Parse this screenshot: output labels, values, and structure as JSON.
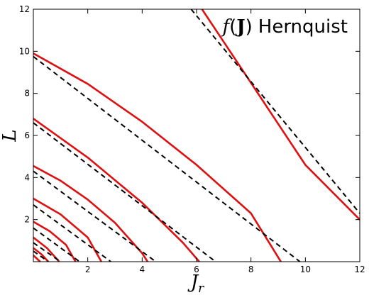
{
  "chart_data": {
    "type": "line",
    "annotation": {
      "f": "f",
      "open": "(",
      "J": "J",
      "close": ")",
      "name": "Hernquist"
    },
    "xlabel": {
      "main": "J",
      "sub": "r"
    },
    "ylabel": "L",
    "xlim": [
      0,
      12
    ],
    "ylim": [
      0,
      12
    ],
    "xticks": [
      2,
      4,
      6,
      8,
      10,
      12
    ],
    "yticks": [
      2,
      4,
      6,
      8,
      10,
      12
    ],
    "grid": false,
    "series_style": {
      "solid_color": "#dd1111",
      "dashed_color": "#000000"
    },
    "series": [
      {
        "style": "solid",
        "points": [
          [
            6.2,
            12
          ],
          [
            8,
            8.5
          ],
          [
            10,
            4.6
          ],
          [
            12,
            2.0
          ]
        ]
      },
      {
        "style": "solid",
        "points": [
          [
            0,
            9.9
          ],
          [
            2,
            8.45
          ],
          [
            4,
            6.65
          ],
          [
            6,
            4.6
          ],
          [
            8,
            2.3
          ],
          [
            9.1,
            0
          ]
        ]
      },
      {
        "style": "solid",
        "points": [
          [
            0,
            6.8
          ],
          [
            2,
            4.95
          ],
          [
            4,
            2.8
          ],
          [
            5.5,
            0.9
          ],
          [
            6.1,
            0
          ]
        ]
      },
      {
        "style": "solid",
        "points": [
          [
            0,
            4.55
          ],
          [
            1,
            3.85
          ],
          [
            2,
            2.95
          ],
          [
            3,
            1.85
          ],
          [
            4,
            0.4
          ],
          [
            4.2,
            0
          ]
        ]
      },
      {
        "style": "solid",
        "points": [
          [
            0,
            3.0
          ],
          [
            1,
            2.25
          ],
          [
            2,
            1.15
          ],
          [
            2.5,
            0
          ]
        ]
      },
      {
        "style": "solid",
        "points": [
          [
            0,
            1.9
          ],
          [
            0.6,
            1.45
          ],
          [
            1.2,
            0.8
          ],
          [
            1.55,
            0
          ]
        ]
      },
      {
        "style": "solid",
        "points": [
          [
            0,
            1.15
          ],
          [
            0.5,
            0.65
          ],
          [
            0.95,
            0
          ]
        ]
      },
      {
        "style": "solid",
        "points": [
          [
            0,
            0.65
          ],
          [
            0.3,
            0.35
          ],
          [
            0.55,
            0
          ]
        ]
      },
      {
        "style": "solid",
        "points": [
          [
            0,
            0.3
          ],
          [
            0.25,
            0
          ]
        ]
      },
      {
        "style": "dashed",
        "points": [
          [
            5.8,
            12
          ],
          [
            12,
            2.3
          ]
        ]
      },
      {
        "style": "dashed",
        "points": [
          [
            0,
            9.75
          ],
          [
            9.8,
            0
          ]
        ]
      },
      {
        "style": "dashed",
        "points": [
          [
            0,
            6.6
          ],
          [
            6.7,
            0
          ]
        ]
      },
      {
        "style": "dashed",
        "points": [
          [
            0,
            4.3
          ],
          [
            4.5,
            0
          ]
        ]
      },
      {
        "style": "dashed",
        "points": [
          [
            0,
            2.7
          ],
          [
            2.85,
            0
          ]
        ]
      },
      {
        "style": "dashed",
        "points": [
          [
            0,
            1.6
          ],
          [
            1.7,
            0
          ]
        ]
      },
      {
        "style": "dashed",
        "points": [
          [
            0,
            0.9
          ],
          [
            1.0,
            0
          ]
        ]
      },
      {
        "style": "dashed",
        "points": [
          [
            0,
            0.5
          ],
          [
            0.55,
            0
          ]
        ]
      }
    ]
  }
}
